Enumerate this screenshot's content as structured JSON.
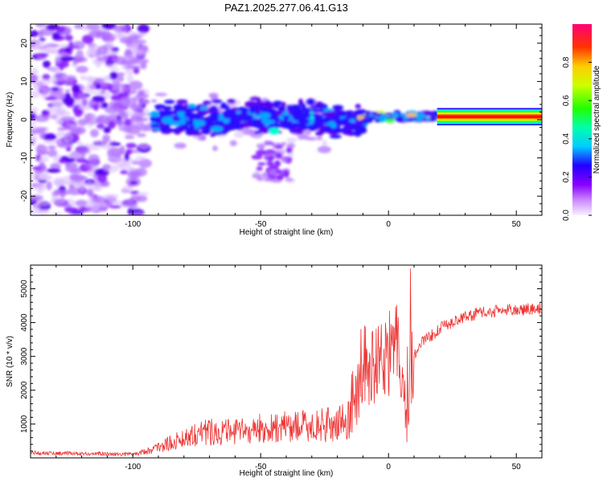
{
  "title": "PAZ1.2025.277.06.41.G13",
  "chart_data": [
    {
      "type": "heatmap",
      "xlabel": "Height of straight line (km)",
      "ylabel": "Frequency (Hz)",
      "xlim": [
        -140,
        60
      ],
      "ylim": [
        -25,
        25
      ],
      "xticks": [
        -100,
        -50,
        0,
        50
      ],
      "yticks": [
        -20,
        -10,
        0,
        10,
        20
      ],
      "description_series": [
        {
          "name": "dominant frequency track",
          "x": [
            -90,
            -80,
            -70,
            -60,
            -50,
            -40,
            -30,
            -20,
            -10,
            0,
            10,
            20,
            60
          ],
          "y": [
            0,
            -1,
            -1,
            0,
            -1,
            1,
            1,
            0,
            0,
            1,
            1,
            1,
            1
          ]
        }
      ],
      "colorbar": {
        "label": "Normalized spectral amplitude",
        "range": [
          0,
          1
        ],
        "ticks": [
          0.0,
          0.2,
          0.4,
          0.6,
          0.8
        ],
        "tick_labels": [
          "0.0",
          "0.2",
          "0.4",
          "0.6",
          "0.8"
        ]
      }
    },
    {
      "type": "line",
      "xlabel": "Height of straight line (km)",
      "ylabel": "SNR (10 * v/v)",
      "xlim": [
        -140,
        60
      ],
      "ylim": [
        0,
        5700
      ],
      "xticks": [
        -100,
        -50,
        0,
        50
      ],
      "yticks": [
        1000,
        2000,
        3000,
        4000,
        5000
      ],
      "color": "#ee3333",
      "series": [
        {
          "name": "SNR",
          "x": [
            -140,
            -130,
            -120,
            -110,
            -100,
            -95,
            -90,
            -85,
            -80,
            -75,
            -70,
            -65,
            -60,
            -55,
            -50,
            -45,
            -40,
            -35,
            -30,
            -25,
            -20,
            -15,
            -12,
            -10,
            -8,
            -5,
            -2,
            0,
            2,
            4,
            6,
            8,
            10,
            12,
            15,
            18,
            20,
            25,
            30,
            35,
            40,
            45,
            50,
            55,
            60
          ],
          "y": [
            150,
            130,
            120,
            110,
            100,
            180,
            300,
            420,
            560,
            700,
            760,
            720,
            720,
            760,
            820,
            820,
            880,
            900,
            880,
            920,
            940,
            1100,
            1800,
            2600,
            2500,
            2600,
            2900,
            2900,
            3100,
            3100,
            2500,
            2000,
            3000,
            3300,
            3550,
            3650,
            3800,
            4000,
            4150,
            4250,
            4300,
            4350,
            4350,
            4380,
            4400
          ]
        }
      ]
    }
  ]
}
